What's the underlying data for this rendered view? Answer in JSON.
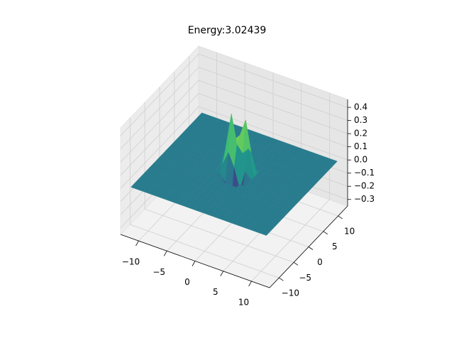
{
  "chart_data": {
    "type": "surface",
    "title": "Energy:3.02439",
    "x": [
      -12,
      -9,
      -6,
      -4,
      -3,
      -2,
      -1,
      0,
      1,
      2,
      3,
      4,
      6,
      9,
      12
    ],
    "y": [
      -12,
      -9,
      -6,
      -4,
      -3,
      -2,
      -1,
      0,
      1,
      2,
      3,
      4,
      6,
      9,
      12
    ],
    "z": [
      [
        0,
        0,
        0,
        0,
        0,
        0,
        0,
        0,
        0,
        0,
        0,
        0,
        0,
        0,
        0
      ],
      [
        0,
        0,
        0,
        0,
        0,
        0,
        0,
        0,
        0,
        0,
        0,
        0,
        0,
        0,
        0
      ],
      [
        0,
        0,
        0,
        0,
        0,
        0,
        0,
        0,
        0,
        0,
        0,
        0,
        0,
        0,
        0
      ],
      [
        0,
        0,
        0,
        0,
        0,
        0,
        0,
        0,
        0,
        0,
        0,
        0,
        0,
        0,
        0
      ],
      [
        0,
        0,
        0,
        0,
        0,
        0,
        0,
        0,
        0,
        0,
        0,
        0,
        0,
        0,
        0
      ],
      [
        0,
        0,
        0,
        0,
        0,
        0,
        0,
        -0.08,
        -0.12,
        0,
        0,
        0,
        0,
        0,
        0
      ],
      [
        0,
        0,
        0,
        0,
        0,
        0,
        -0.05,
        -0.2,
        -0.3,
        -0.1,
        0,
        0,
        0,
        0,
        0
      ],
      [
        0,
        0,
        0,
        0,
        0,
        0.05,
        0.15,
        0.05,
        -0.1,
        0.05,
        0,
        0,
        0,
        0,
        0
      ],
      [
        0,
        0,
        0,
        0,
        0,
        0.15,
        0.42,
        0.2,
        0.15,
        0.2,
        0,
        0,
        0,
        0,
        0
      ],
      [
        0,
        0,
        0,
        0,
        0,
        0.08,
        0.2,
        0.25,
        0.38,
        0.15,
        0,
        0,
        0,
        0,
        0
      ],
      [
        0,
        0,
        0,
        0,
        0,
        0,
        0,
        0.08,
        0.12,
        0,
        0,
        0,
        0,
        0,
        0
      ],
      [
        0,
        0,
        0,
        0,
        0,
        0,
        0,
        0,
        0,
        0,
        0,
        0,
        0,
        0,
        0
      ],
      [
        0,
        0,
        0,
        0,
        0,
        0,
        0,
        0,
        0,
        0,
        0,
        0,
        0,
        0,
        0
      ],
      [
        0,
        0,
        0,
        0,
        0,
        0,
        0,
        0,
        0,
        0,
        0,
        0,
        0,
        0,
        0
      ],
      [
        0,
        0,
        0,
        0,
        0,
        0,
        0,
        0,
        0,
        0,
        0,
        0,
        0,
        0,
        0
      ]
    ],
    "colormap": "viridis",
    "xlim": [
      -13.2,
      13.2
    ],
    "ylim": [
      -13.2,
      13.2
    ],
    "zlim": [
      -0.35,
      0.46
    ],
    "xticks": [
      {
        "value": -10,
        "label": "−10"
      },
      {
        "value": -5,
        "label": "−5"
      },
      0,
      5,
      10
    ],
    "yticks": [
      {
        "value": -10,
        "label": "−10"
      },
      {
        "value": -5,
        "label": "−5"
      },
      0,
      5,
      10
    ],
    "zticks": [
      {
        "value": -0.3,
        "label": "−0.3"
      },
      {
        "value": -0.2,
        "label": "−0.2"
      },
      {
        "value": -0.1,
        "label": "−0.1"
      },
      {
        "value": 0,
        "label": "0.0"
      },
      0.1,
      0.2,
      0.3,
      0.4
    ],
    "grid": true
  }
}
